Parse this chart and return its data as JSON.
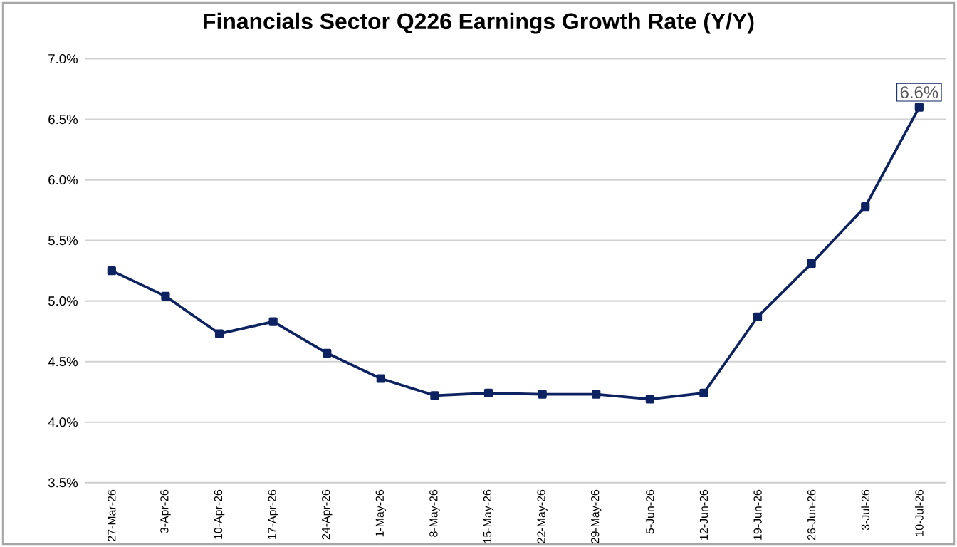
{
  "chart_data": {
    "type": "line",
    "title": "Financials Sector Q226 Earnings Growth Rate (Y/Y)",
    "categories": [
      "27-Mar-26",
      "3-Apr-26",
      "10-Apr-26",
      "17-Apr-26",
      "24-Apr-26",
      "1-May-26",
      "8-May-26",
      "15-May-26",
      "22-May-26",
      "29-May-26",
      "5-Jun-26",
      "12-Jun-26",
      "19-Jun-26",
      "26-Jun-26",
      "3-Jul-26",
      "10-Jul-26"
    ],
    "series": [
      {
        "color": "#0d2260",
        "values": [
          5.25,
          5.04,
          4.73,
          4.83,
          4.57,
          4.36,
          4.22,
          4.24,
          4.23,
          4.23,
          4.19,
          4.24,
          4.87,
          5.31,
          5.78,
          6.6
        ],
        "value_labels": [
          null,
          null,
          null,
          null,
          null,
          null,
          null,
          null,
          null,
          null,
          null,
          null,
          null,
          null,
          null,
          "6.6%"
        ]
      }
    ],
    "ylim": [
      3.5,
      7.0
    ],
    "yticks": [
      {
        "value": 3.5,
        "label": "3.5%"
      },
      {
        "value": 4.0,
        "label": "4.0%"
      },
      {
        "value": 4.5,
        "label": "4.5%"
      },
      {
        "value": 5.0,
        "label": "5.0%"
      },
      {
        "value": 5.5,
        "label": "5.5%"
      },
      {
        "value": 6.0,
        "label": "6.0%"
      },
      {
        "value": 6.5,
        "label": "6.5%"
      },
      {
        "value": 7.0,
        "label": "7.0%"
      }
    ],
    "grid": "y",
    "marker": "square",
    "line_style": "solid"
  }
}
